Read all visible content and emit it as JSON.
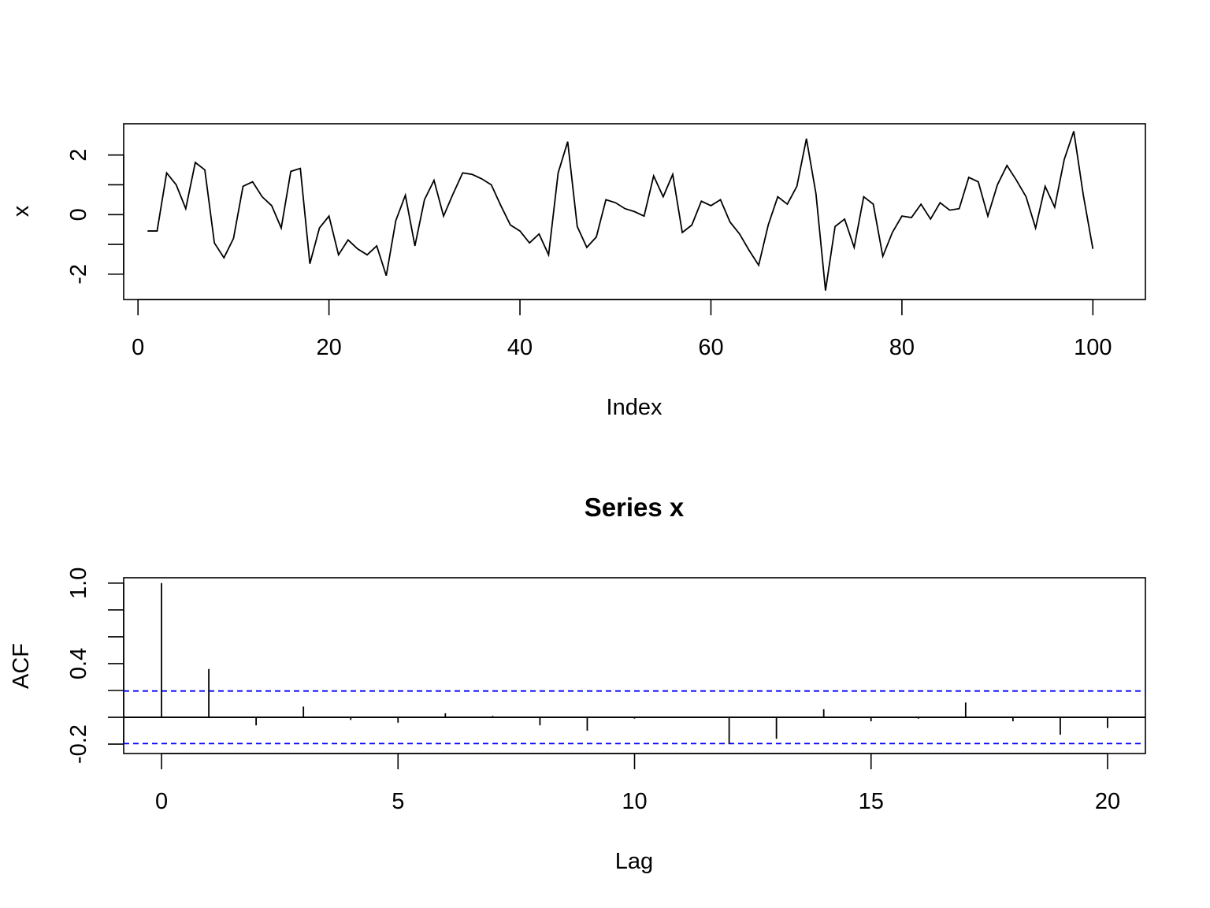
{
  "chart_data": [
    {
      "type": "line",
      "title": "",
      "xlabel": "Index",
      "ylabel": "x",
      "xlim": [
        -1.5,
        105.5
      ],
      "ylim": [
        -2.85,
        3.05
      ],
      "xticks": [
        "0",
        "20",
        "40",
        "60",
        "80",
        "100"
      ],
      "yticks": [
        "-2",
        "0",
        "2"
      ],
      "x": [
        1,
        2,
        3,
        4,
        5,
        6,
        7,
        8,
        9,
        10,
        11,
        12,
        13,
        14,
        15,
        16,
        17,
        18,
        19,
        20,
        21,
        22,
        23,
        24,
        25,
        26,
        27,
        28,
        29,
        30,
        31,
        32,
        33,
        34,
        35,
        36,
        37,
        38,
        39,
        40,
        41,
        42,
        43,
        44,
        45,
        46,
        47,
        48,
        49,
        50,
        51,
        52,
        53,
        54,
        55,
        56,
        57,
        58,
        59,
        60,
        61,
        62,
        63,
        64,
        65,
        66,
        67,
        68,
        69,
        70,
        71,
        72,
        73,
        74,
        75,
        76,
        77,
        78,
        79,
        80,
        81,
        82,
        83,
        84,
        85,
        86,
        87,
        88,
        89,
        90,
        91,
        92,
        93,
        94,
        95,
        96,
        97,
        98,
        99,
        100
      ],
      "series": [
        {
          "values": [
            -0.55,
            -0.55,
            1.4,
            1.0,
            0.2,
            1.75,
            1.5,
            -0.95,
            -1.45,
            -0.8,
            0.95,
            1.1,
            0.6,
            0.3,
            -0.45,
            1.45,
            1.55,
            -1.65,
            -0.45,
            -0.05,
            -1.35,
            -0.85,
            -1.15,
            -1.35,
            -1.05,
            -2.05,
            -0.2,
            0.65,
            -1.05,
            0.5,
            1.15,
            -0.05,
            0.7,
            1.4,
            1.35,
            1.2,
            1.0,
            0.3,
            -0.35,
            -0.55,
            -0.95,
            -0.65,
            -1.35,
            1.4,
            2.45,
            -0.4,
            -1.1,
            -0.75,
            0.5,
            0.4,
            0.2,
            0.1,
            -0.05,
            1.3,
            0.6,
            1.35,
            -0.6,
            -0.35,
            0.45,
            0.3,
            0.5,
            -0.25,
            -0.65,
            -1.2,
            -1.7,
            -0.35,
            0.6,
            0.35,
            0.95,
            2.55,
            0.7,
            -2.55,
            -0.4,
            -0.15,
            -1.1,
            0.6,
            0.35,
            -1.4,
            -0.6,
            -0.05,
            -0.1,
            0.35,
            -0.15,
            0.4,
            0.15,
            0.2,
            1.25,
            1.1,
            -0.05,
            1.0,
            1.65,
            1.15,
            0.6,
            -0.45,
            0.95,
            0.25,
            1.85,
            2.8,
            0.65,
            -1.15
          ]
        }
      ]
    },
    {
      "type": "bar",
      "title": "Series  x",
      "xlabel": "Lag",
      "ylabel": "ACF",
      "xlim": [
        -0.8,
        20.8
      ],
      "ylim": [
        -0.27,
        1.04
      ],
      "xticks": [
        "0",
        "5",
        "10",
        "15",
        "20"
      ],
      "yticks": [
        "-0.2",
        "0.4",
        "1.0"
      ],
      "confidence_band": 0.196,
      "confidence_band_color": "#0000ff",
      "x": [
        0,
        1,
        2,
        3,
        4,
        5,
        6,
        7,
        8,
        9,
        10,
        11,
        12,
        13,
        14,
        15,
        16,
        17,
        18,
        19,
        20
      ],
      "series": [
        {
          "values": [
            1.0,
            0.36,
            -0.06,
            0.08,
            -0.02,
            -0.04,
            0.03,
            0.01,
            -0.06,
            -0.1,
            -0.01,
            0.0,
            -0.2,
            -0.16,
            0.06,
            -0.03,
            -0.01,
            0.11,
            -0.03,
            -0.13,
            -0.08
          ]
        }
      ]
    }
  ]
}
